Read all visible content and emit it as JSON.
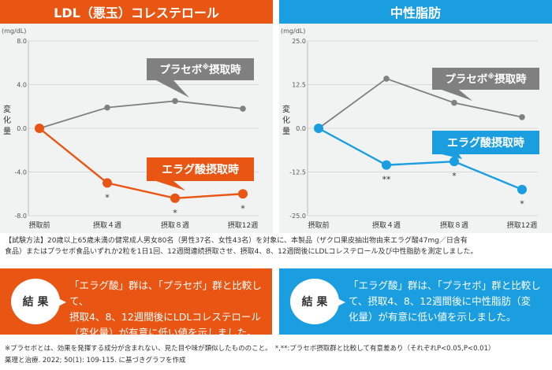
{
  "chart_data": [
    {
      "type": "line",
      "title": "LDL（悪玉）コレステロール",
      "unit": "(mg/dL)",
      "ylabel": "変化量",
      "ylim": [
        -8.0,
        8.0
      ],
      "yticks": [
        "8.0",
        "4.0",
        "0.0",
        "-4.0",
        "-8.0"
      ],
      "ytick_values": [
        8,
        4,
        0,
        -4,
        -8
      ],
      "categories": [
        "摂取前",
        "摂取４週",
        "摂取８週",
        "摂取12週"
      ],
      "series": [
        {
          "name": "プラセボ※摂取時",
          "name_main": "プラセボ",
          "name_mark": "※",
          "name_tail": "摂取時",
          "values": [
            0.0,
            1.9,
            2.5,
            1.8
          ],
          "color": "#808080"
        },
        {
          "name": "エラグ酸摂取時",
          "values": [
            0.0,
            -5.0,
            -6.4,
            -6.0
          ],
          "color": "#e95513",
          "significance": [
            "",
            "*",
            "*",
            "*"
          ]
        }
      ]
    },
    {
      "type": "line",
      "title": "中性脂肪",
      "unit": "(mg/dL)",
      "ylabel": "変化量",
      "ylim": [
        -25.0,
        25.0
      ],
      "yticks": [
        "25.0",
        "12.5",
        "0.0",
        "-12.5",
        "-25.0"
      ],
      "ytick_values": [
        25,
        12.5,
        0,
        -12.5,
        -25
      ],
      "categories": [
        "摂取前",
        "摂取４週",
        "摂取８週",
        "摂取12週"
      ],
      "series": [
        {
          "name": "プラセボ※摂取時",
          "name_main": "プラセボ",
          "name_mark": "※",
          "name_tail": "摂取時",
          "values": [
            0.0,
            14.2,
            7.3,
            3.2
          ],
          "color": "#808080"
        },
        {
          "name": "エラグ酸摂取時",
          "values": [
            0.0,
            -10.5,
            -9.5,
            -17.5
          ],
          "color": "#1b9ee0",
          "significance": [
            "",
            "**",
            "*",
            "*"
          ]
        }
      ]
    }
  ],
  "method_text_1": "【試験方法】20歳以上65歳未満の健常成人男女80名（男性37名、女性43名）を対象に、本製品（ザクロ果皮抽出物由来エラグ酸47mg／日含有",
  "method_text_2": "食品）またはプラセボ食品いずれか2粒を1日1回、12週間連続摂取させ、摂取4、8、12週間後にLDLコレステロール及び中性脂肪を測定しました。",
  "results": [
    {
      "label": "結 果",
      "lines": [
        "「エラグ酸」群は、「プラセボ」群と比較して、",
        "摂取4、8、12週間後にLDLコレステロール",
        "（変化量）が有意に低い値を示しました。"
      ]
    },
    {
      "label": "結 果",
      "lines": [
        "「エラグ酸」群は、「プラセボ」群と比較し",
        "て、摂取4、8、12週間後に中性脂肪（変",
        "化量）が有意に低い値を示しました。"
      ]
    }
  ],
  "footnote_1": "※プラセボとは、効果を発揮する成分が含まれない、見た目や味が類似したもののこと。　*,**:プラセボ摂取群と比較して有意差あり（それぞれP<0.05,P<0.01）",
  "footnote_2": "薬理と治療. 2022; 50(1): 109-115. に基づきグラフを作成",
  "colors": {
    "ldl": "#e95513",
    "tg": "#1b9ee0",
    "placebo": "#808080",
    "plot_bg": "#f1f2f2"
  }
}
